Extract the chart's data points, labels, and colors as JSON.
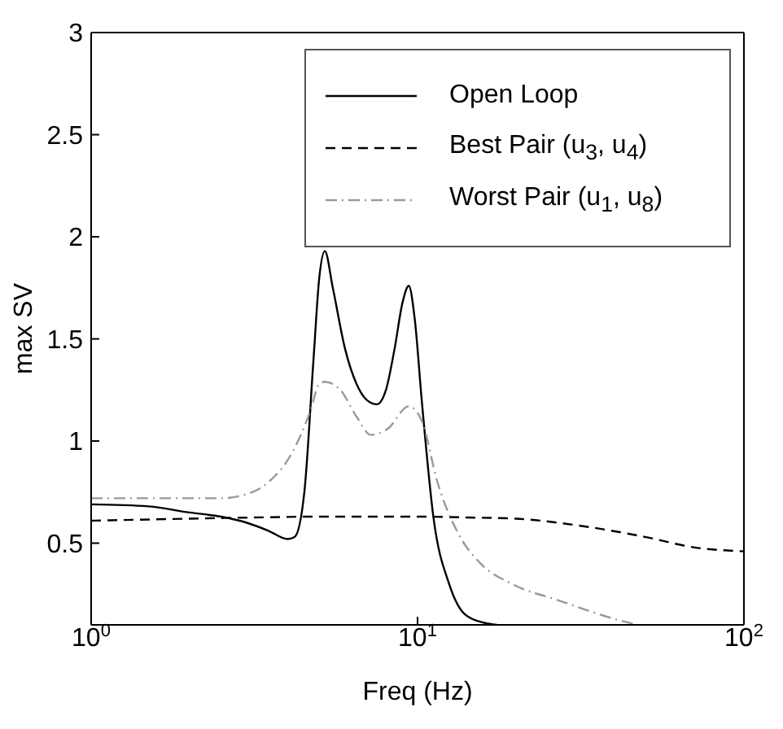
{
  "chart_data": {
    "type": "line",
    "xlabel": "Freq (Hz)",
    "ylabel": "max SV",
    "log": "x",
    "xlim": [
      1,
      100
    ],
    "ylim": [
      0.1,
      3
    ],
    "xticks": [
      {
        "value": 1,
        "label": "10$^{0}$"
      },
      {
        "value": 10,
        "label": "10$^{1}$"
      },
      {
        "value": 100,
        "label": "10$^{2}$"
      }
    ],
    "yticks": [
      0.5,
      1,
      1.5,
      2,
      2.5,
      3
    ],
    "legend": "top right",
    "marker": "none",
    "series": [
      {
        "name": "Open Loop",
        "color": "#000000",
        "line_style": "solid",
        "x": [
          1,
          1.5,
          2,
          2.5,
          3,
          3.5,
          4,
          4.2,
          4.5,
          4.8,
          5.0,
          5.2,
          5.5,
          6,
          6.5,
          7,
          7.5,
          8,
          8.5,
          9,
          9.4,
          9.8,
          10.3,
          11.2,
          12.5,
          14,
          16,
          17.5
        ],
        "values": [
          0.69,
          0.68,
          0.65,
          0.63,
          0.6,
          0.56,
          0.52,
          0.53,
          0.75,
          1.4,
          1.8,
          1.93,
          1.75,
          1.45,
          1.28,
          1.2,
          1.18,
          1.25,
          1.45,
          1.68,
          1.76,
          1.6,
          1.2,
          0.62,
          0.3,
          0.15,
          0.11,
          0.1
        ]
      },
      {
        "name": "Best Pair (u$_{3}$, u$_{4}$)",
        "color": "#000000",
        "line_style": "dashed",
        "x": [
          1,
          2,
          3,
          5,
          10,
          15,
          20,
          30,
          50,
          70,
          100
        ],
        "values": [
          0.61,
          0.62,
          0.625,
          0.63,
          0.63,
          0.625,
          0.62,
          0.59,
          0.53,
          0.48,
          0.46
        ]
      },
      {
        "name": "Worst Pair (u$_{1}$, u$_{8}$)",
        "color": "#999999",
        "line_style": "dotted",
        "x": [
          1,
          2,
          2.5,
          3,
          3.5,
          4.15,
          4.7,
          5,
          5.2,
          5.8,
          6.5,
          7.2,
          8.1,
          9.4,
          10.3,
          11.5,
          13.3,
          15.6,
          19.5,
          27,
          42,
          47
        ],
        "values": [
          0.72,
          0.72,
          0.72,
          0.74,
          0.8,
          0.95,
          1.15,
          1.28,
          1.29,
          1.25,
          1.12,
          1.03,
          1.06,
          1.17,
          1.1,
          0.8,
          0.55,
          0.4,
          0.3,
          0.22,
          0.12,
          0.1
        ]
      }
    ]
  }
}
